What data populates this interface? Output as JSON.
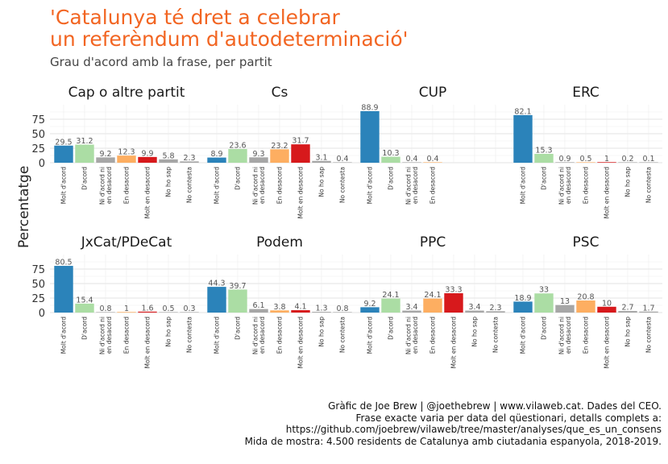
{
  "chart_data": {
    "type": "bar",
    "title_lines": [
      "'Catalunya té dret a celebrar",
      "un referèndum d'autodeterminació'"
    ],
    "subtitle": "Grau d'acord amb la frase, per partit",
    "ylabel": "Percentatge",
    "ylim": [
      0,
      100
    ],
    "yticks": [
      0,
      25,
      50,
      75
    ],
    "colors": {
      "Molt d'acord": "#2b83ba",
      "D'acord": "#abdda4",
      "Ni d'acord ni en desacord": "#a6a6a6",
      "En desacord": "#fdae61",
      "Molt en desacord": "#d7191c",
      "No ho sap": "#a6a6a6",
      "No contesta": "#a6a6a6"
    },
    "panels": [
      {
        "name": "Cap o altre partit",
        "categories": [
          "Molt d'acord",
          "D'acord",
          "Ni d'acord ni en desacord",
          "En desacord",
          "Molt en desacord",
          "No ho sap",
          "No contesta"
        ],
        "values": [
          29.5,
          31.2,
          9.2,
          12.3,
          9.9,
          5.8,
          2.3
        ]
      },
      {
        "name": "Cs",
        "categories": [
          "Molt d'acord",
          "D'acord",
          "Ni d'acord ni en desacord",
          "En desacord",
          "Molt en desacord",
          "No ho sap",
          "No contesta"
        ],
        "values": [
          8.9,
          23.6,
          9.3,
          23.2,
          31.7,
          3.1,
          0.4
        ]
      },
      {
        "name": "CUP",
        "categories": [
          "Molt d'acord",
          "D'acord",
          "Ni d'acord ni en desacord",
          "En desacord"
        ],
        "values": [
          88.9,
          10.3,
          0.4,
          0.4
        ]
      },
      {
        "name": "ERC",
        "categories": [
          "Molt d'acord",
          "D'acord",
          "Ni d'acord ni en desacord",
          "En desacord",
          "Molt en desacord",
          "No ho sap",
          "No contesta"
        ],
        "values": [
          82.1,
          15.3,
          0.9,
          0.5,
          1,
          0.2,
          0.1
        ]
      },
      {
        "name": "JxCat/PDeCat",
        "categories": [
          "Molt d'acord",
          "D'acord",
          "Ni d'acord ni en desacord",
          "En desacord",
          "Molt en desacord",
          "No ho sap",
          "No contesta"
        ],
        "values": [
          80.5,
          15.4,
          0.8,
          1,
          1.6,
          0.5,
          0.3
        ]
      },
      {
        "name": "Podem",
        "categories": [
          "Molt d'acord",
          "D'acord",
          "Ni d'acord ni en desacord",
          "En desacord",
          "Molt en desacord",
          "No ho sap",
          "No contesta"
        ],
        "values": [
          44.3,
          39.7,
          6.1,
          3.8,
          4.1,
          1.3,
          0.8
        ]
      },
      {
        "name": "PPC",
        "categories": [
          "Molt d'acord",
          "D'acord",
          "Ni d'acord ni en desacord",
          "En desacord",
          "Molt en desacord",
          "No ho sap",
          "No contesta"
        ],
        "values": [
          9.2,
          24.1,
          3.4,
          24.1,
          33.3,
          3.4,
          2.3
        ]
      },
      {
        "name": "PSC",
        "categories": [
          "Molt d'acord",
          "D'acord",
          "Ni d'acord ni en desacord",
          "En desacord",
          "Molt en desacord",
          "No ho sap",
          "No contesta"
        ],
        "values": [
          18.9,
          33,
          13,
          20.8,
          10,
          2.7,
          1.7
        ]
      }
    ]
  },
  "caption": [
    "Gràfic de Joe Brew | @joethebrew | www.vilaweb.cat. Dades del CEO.",
    "Frase exacte varia per data del qüestionari, detalls complets a:",
    "https://github.com/joebrew/vilaweb/tree/master/analyses/que_es_un_consens",
    "Mida de mostra: 4.500 residents de Catalunya amb ciutadania espanyola, 2018-2019."
  ]
}
